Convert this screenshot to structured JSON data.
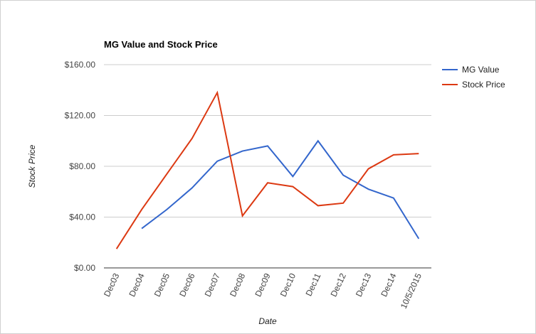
{
  "chart_data": {
    "type": "line",
    "title": "MG Value and Stock Price",
    "x_label": "Date",
    "y_label": "Stock Price",
    "categories": [
      "Dec03",
      "Dec04",
      "Dec05",
      "Dec06",
      "Dec07",
      "Dec08",
      "Dec09",
      "Dec10",
      "Dec11",
      "Dec12",
      "Dec13",
      "Dec14",
      "10/5/2015"
    ],
    "series": [
      {
        "name": "MG Value",
        "color": "#3366cc",
        "values": [
          null,
          31,
          46,
          63,
          84,
          92,
          96,
          72,
          100,
          73,
          62,
          55,
          23
        ]
      },
      {
        "name": "Stock Price",
        "color": "#dc3912",
        "values": [
          15,
          46,
          74,
          102,
          138,
          41,
          67,
          64,
          49,
          51,
          78,
          89,
          90
        ]
      }
    ],
    "ylim": [
      0,
      160
    ],
    "yticks": [
      {
        "value": 0,
        "label": "$0.00"
      },
      {
        "value": 40,
        "label": "$40.00"
      },
      {
        "value": 80,
        "label": "$80.00"
      },
      {
        "value": 120,
        "label": "$120.00"
      },
      {
        "value": 160,
        "label": "$160.00"
      }
    ],
    "grid": true,
    "legend": "right"
  }
}
